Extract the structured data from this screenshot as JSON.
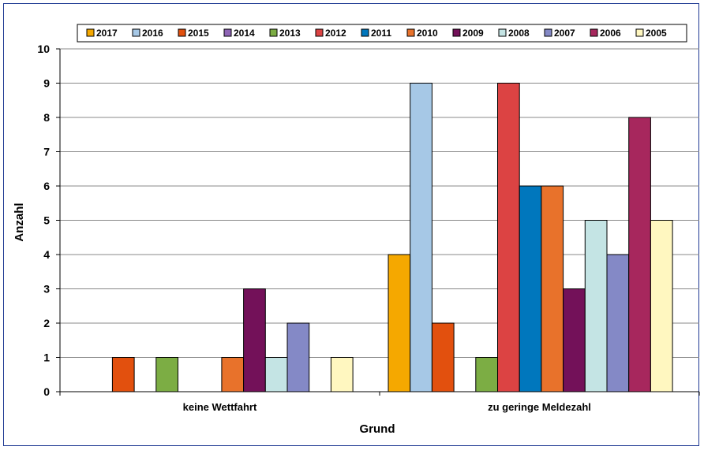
{
  "chart_data": {
    "type": "bar",
    "categories": [
      "keine Wettfahrt",
      "zu geringe Meldezahl"
    ],
    "xlabel": "Grund",
    "ylabel": "Anzahl",
    "ylim": [
      0,
      10
    ],
    "yticks": [
      0,
      1,
      2,
      3,
      4,
      5,
      6,
      7,
      8,
      9,
      10
    ],
    "grid": true,
    "legend": "top",
    "series": [
      {
        "name": "2017",
        "color": "#f5a800",
        "values": [
          0,
          4
        ]
      },
      {
        "name": "2016",
        "color": "#a6c8e6",
        "values": [
          0,
          9
        ]
      },
      {
        "name": "2015",
        "color": "#e2500e",
        "values": [
          1,
          2
        ]
      },
      {
        "name": "2014",
        "color": "#8e64b5",
        "values": [
          0,
          0
        ]
      },
      {
        "name": "2013",
        "color": "#7cad44",
        "values": [
          1,
          1
        ]
      },
      {
        "name": "2012",
        "color": "#dc4343",
        "values": [
          0,
          9
        ]
      },
      {
        "name": "2011",
        "color": "#0077bd",
        "values": [
          0,
          6
        ]
      },
      {
        "name": "2010",
        "color": "#e8722b",
        "values": [
          1,
          6
        ]
      },
      {
        "name": "2009",
        "color": "#731159",
        "values": [
          3,
          3
        ]
      },
      {
        "name": "2008",
        "color": "#c4e4e4",
        "values": [
          1,
          5
        ]
      },
      {
        "name": "2007",
        "color": "#8489c6",
        "values": [
          2,
          4
        ]
      },
      {
        "name": "2006",
        "color": "#a7275d",
        "values": [
          0,
          8
        ]
      },
      {
        "name": "2005",
        "color": "#fff7c0",
        "values": [
          1,
          5
        ]
      }
    ]
  }
}
